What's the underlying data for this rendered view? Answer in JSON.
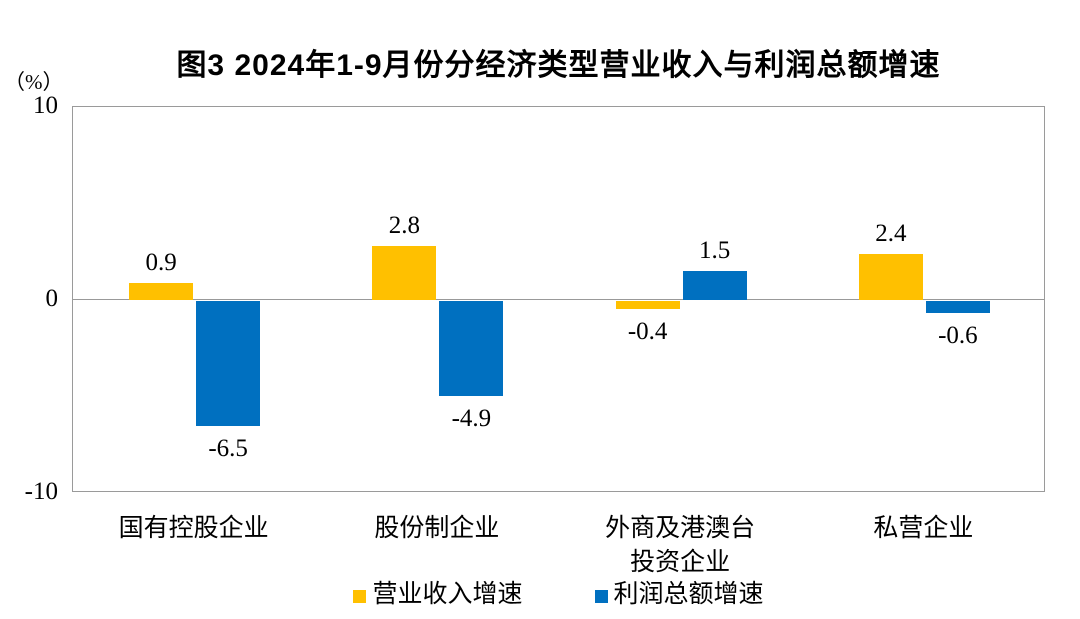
{
  "figure": {
    "title": "图3 2024年1-9月份分经济类型营业收入与利润总额增速",
    "unit_label": "（%）"
  },
  "chart_data": {
    "type": "bar",
    "title": "图3 2024年1-9月份分经济类型营业收入与利润总额增速",
    "categories": [
      "国有控股企业",
      "股份制企业",
      "外商及港澳台投资企业",
      "私营企业"
    ],
    "category_display_lines": [
      [
        "国有控股企业"
      ],
      [
        "股份制企业"
      ],
      [
        "外商及港澳台",
        "投资企业"
      ],
      [
        "私营企业"
      ]
    ],
    "series": [
      {
        "name": "营业收入增速",
        "color": "#FFC000",
        "values": [
          0.9,
          2.8,
          -0.4,
          2.4
        ]
      },
      {
        "name": "利润总额增速",
        "color": "#0070C0",
        "values": [
          -6.5,
          -4.9,
          1.5,
          -0.6
        ]
      }
    ],
    "ylabel": "（%）",
    "ylim": [
      -10,
      10
    ],
    "y_ticks": [
      10,
      0,
      -10
    ],
    "data_labels": true,
    "grid": false,
    "legend_position": "bottom",
    "axis_color": "#9a9a9a",
    "zero_line_color": "#999999"
  }
}
